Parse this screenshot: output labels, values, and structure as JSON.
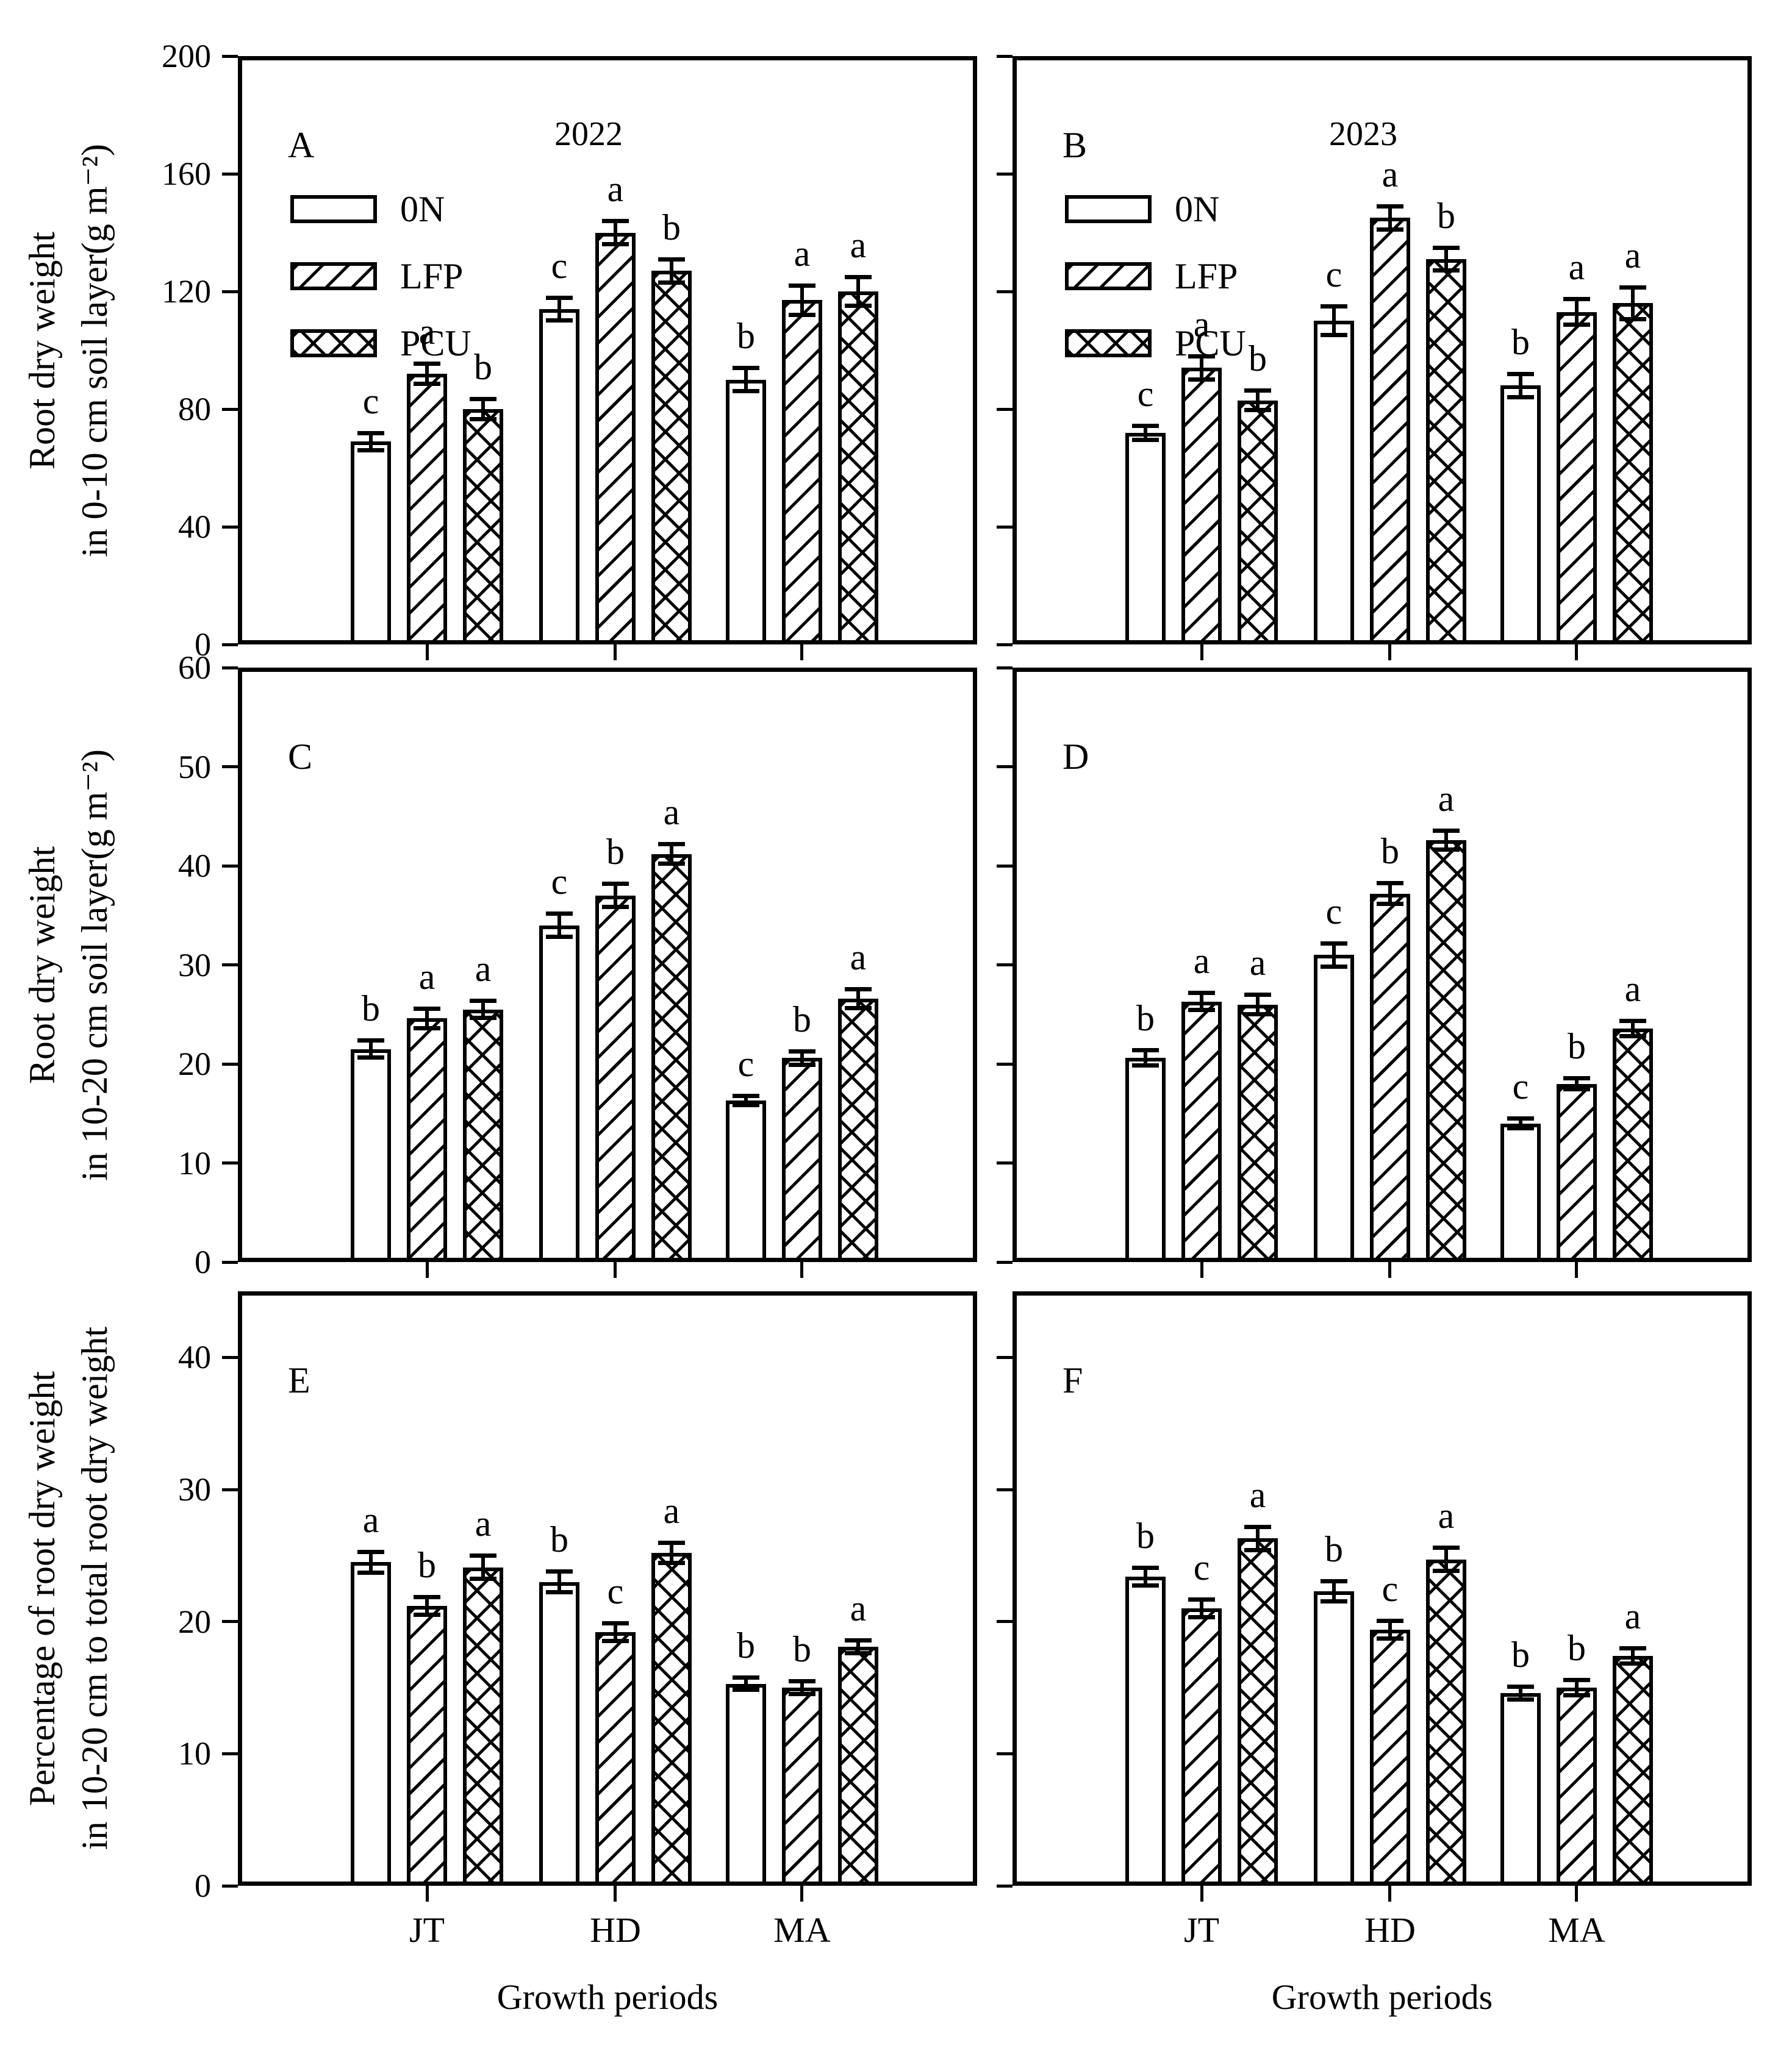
{
  "x_axis": {
    "categories": [
      "JT",
      "HD",
      "MA"
    ],
    "title": "Growth periods"
  },
  "legend": {
    "items": [
      {
        "label": "0N",
        "pattern": "plain"
      },
      {
        "label": "LFP",
        "pattern": "diagonal"
      },
      {
        "label": "PCU",
        "pattern": "crosshatch"
      }
    ]
  },
  "colors": {
    "foreground": "#000000",
    "background": "#ffffff"
  },
  "chart_data": [
    {
      "id": "A",
      "type": "bar",
      "panel_label": "A",
      "year_label": "2022",
      "ylabel": [
        "Root dry weight",
        "in 0-10 cm soil layer(g m⁻²)"
      ],
      "ylim": [
        0,
        200
      ],
      "yticks": [
        0,
        40,
        80,
        120,
        160,
        200
      ],
      "categories": [
        "JT",
        "HD",
        "MA"
      ],
      "show_legend": true,
      "show_ytick_labels": true,
      "show_xtick_labels": false,
      "series": [
        {
          "name": "0N",
          "pattern": "plain",
          "values": [
            69,
            114,
            90
          ],
          "errors": [
            3,
            4,
            4
          ],
          "letters": [
            "c",
            "c",
            "b"
          ]
        },
        {
          "name": "LFP",
          "pattern": "diagonal",
          "values": [
            92,
            140,
            117
          ],
          "errors": [
            3.5,
            4,
            5
          ],
          "letters": [
            "a",
            "a",
            "a"
          ]
        },
        {
          "name": "PCU",
          "pattern": "crosshatch",
          "values": [
            80,
            127,
            120
          ],
          "errors": [
            3.5,
            4,
            5
          ],
          "letters": [
            "b",
            "b",
            "a"
          ]
        }
      ]
    },
    {
      "id": "B",
      "type": "bar",
      "panel_label": "B",
      "year_label": "2023",
      "ylabel": null,
      "ylim": [
        0,
        200
      ],
      "yticks": [
        0,
        40,
        80,
        120,
        160,
        200
      ],
      "categories": [
        "JT",
        "HD",
        "MA"
      ],
      "show_legend": true,
      "show_ytick_labels": false,
      "show_xtick_labels": false,
      "series": [
        {
          "name": "0N",
          "pattern": "plain",
          "values": [
            72,
            110,
            88
          ],
          "errors": [
            2.5,
            5,
            4
          ],
          "letters": [
            "c",
            "c",
            "b"
          ]
        },
        {
          "name": "LFP",
          "pattern": "diagonal",
          "values": [
            94,
            145,
            113
          ],
          "errors": [
            4,
            4,
            4.5
          ],
          "letters": [
            "a",
            "a",
            "a"
          ]
        },
        {
          "name": "PCU",
          "pattern": "crosshatch",
          "values": [
            83,
            131,
            116
          ],
          "errors": [
            3.5,
            4,
            5.5
          ],
          "letters": [
            "b",
            "b",
            "a"
          ]
        }
      ]
    },
    {
      "id": "C",
      "type": "bar",
      "panel_label": "C",
      "year_label": null,
      "ylabel": [
        "Root dry weight",
        "in 10-20 cm soil layer(g m⁻²)"
      ],
      "ylim": [
        0,
        60
      ],
      "yticks": [
        0,
        10,
        20,
        30,
        40,
        50,
        60
      ],
      "categories": [
        "JT",
        "HD",
        "MA"
      ],
      "show_legend": false,
      "show_ytick_labels": true,
      "show_xtick_labels": false,
      "series": [
        {
          "name": "0N",
          "pattern": "plain",
          "values": [
            21.5,
            34,
            16.3
          ],
          "errors": [
            0.9,
            1.2,
            0.5
          ],
          "letters": [
            "b",
            "c",
            "c"
          ]
        },
        {
          "name": "LFP",
          "pattern": "diagonal",
          "values": [
            24.6,
            37,
            20.6
          ],
          "errors": [
            1,
            1.2,
            0.7
          ],
          "letters": [
            "a",
            "b",
            "b"
          ]
        },
        {
          "name": "PCU",
          "pattern": "crosshatch",
          "values": [
            25.5,
            41.2,
            26.6
          ],
          "errors": [
            0.9,
            1,
            1
          ],
          "letters": [
            "a",
            "a",
            "a"
          ]
        }
      ]
    },
    {
      "id": "D",
      "type": "bar",
      "panel_label": "D",
      "year_label": null,
      "ylabel": null,
      "ylim": [
        0,
        60
      ],
      "yticks": [
        0,
        10,
        20,
        30,
        40,
        50,
        60
      ],
      "categories": [
        "JT",
        "HD",
        "MA"
      ],
      "show_legend": false,
      "show_ytick_labels": false,
      "show_xtick_labels": false,
      "series": [
        {
          "name": "0N",
          "pattern": "plain",
          "values": [
            20.6,
            31,
            14
          ],
          "errors": [
            0.8,
            1.2,
            0.5
          ],
          "letters": [
            "b",
            "c",
            "c"
          ]
        },
        {
          "name": "LFP",
          "pattern": "diagonal",
          "values": [
            26.3,
            37.2,
            18
          ],
          "errors": [
            0.9,
            1.1,
            0.6
          ],
          "letters": [
            "a",
            "b",
            "b"
          ]
        },
        {
          "name": "PCU",
          "pattern": "crosshatch",
          "values": [
            26,
            42.6,
            23.6
          ],
          "errors": [
            1,
            1,
            0.8
          ],
          "letters": [
            "a",
            "a",
            "a"
          ]
        }
      ]
    },
    {
      "id": "E",
      "type": "bar",
      "panel_label": "E",
      "year_label": null,
      "ylabel": [
        "Percentage of root dry weight",
        "in 10-20 cm to total root dry weight"
      ],
      "ylim": [
        0,
        45
      ],
      "yticks": [
        0,
        10,
        20,
        30,
        40
      ],
      "categories": [
        "JT",
        "HD",
        "MA"
      ],
      "show_legend": false,
      "show_ytick_labels": true,
      "show_xtick_labels": true,
      "series": [
        {
          "name": "0N",
          "pattern": "plain",
          "values": [
            24.5,
            23,
            15.3
          ],
          "errors": [
            0.8,
            0.8,
            0.5
          ],
          "letters": [
            "a",
            "b",
            "b"
          ]
        },
        {
          "name": "LFP",
          "pattern": "diagonal",
          "values": [
            21.2,
            19.2,
            15
          ],
          "errors": [
            0.7,
            0.7,
            0.5
          ],
          "letters": [
            "b",
            "c",
            "b"
          ]
        },
        {
          "name": "PCU",
          "pattern": "crosshatch",
          "values": [
            24.1,
            25.2,
            18.1
          ],
          "errors": [
            0.9,
            0.8,
            0.5
          ],
          "letters": [
            "a",
            "a",
            "a"
          ]
        }
      ]
    },
    {
      "id": "F",
      "type": "bar",
      "panel_label": "F",
      "year_label": null,
      "ylabel": null,
      "ylim": [
        0,
        45
      ],
      "yticks": [
        0,
        10,
        20,
        30,
        40
      ],
      "categories": [
        "JT",
        "HD",
        "MA"
      ],
      "show_legend": false,
      "show_ytick_labels": false,
      "show_xtick_labels": true,
      "series": [
        {
          "name": "0N",
          "pattern": "plain",
          "values": [
            23.4,
            22.3,
            14.6
          ],
          "errors": [
            0.7,
            0.8,
            0.5
          ],
          "letters": [
            "b",
            "b",
            "b"
          ]
        },
        {
          "name": "LFP",
          "pattern": "diagonal",
          "values": [
            21,
            19.4,
            15
          ],
          "errors": [
            0.7,
            0.7,
            0.6
          ],
          "letters": [
            "c",
            "c",
            "b"
          ]
        },
        {
          "name": "PCU",
          "pattern": "crosshatch",
          "values": [
            26.3,
            24.7,
            17.4
          ],
          "errors": [
            0.9,
            0.9,
            0.6
          ],
          "letters": [
            "a",
            "a",
            "a"
          ]
        }
      ]
    }
  ]
}
